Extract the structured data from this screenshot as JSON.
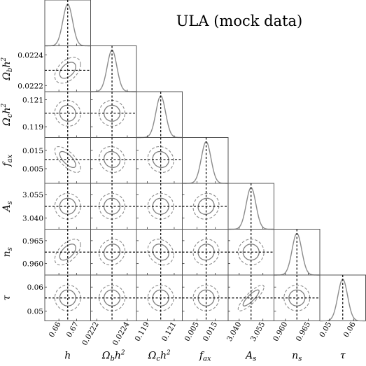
{
  "chart_data": {
    "type": "corner",
    "title": "ULA (mock data)",
    "parameters": [
      {
        "key": "h",
        "label_main": "h",
        "label_sub": "",
        "label_sup": "",
        "truth": 0.665,
        "range": [
          0.652,
          0.678
        ],
        "ticks": [
          "0.66",
          "0.67"
        ],
        "tick_values": [
          0.66,
          0.67
        ]
      },
      {
        "key": "omb",
        "label_main": "Ω",
        "label_sub": "b",
        "label_sup": "2",
        "label_tail": "h",
        "truth": 0.0223,
        "range": [
          0.02216,
          0.02246
        ],
        "ticks": [
          "0.0222",
          "0.0224"
        ],
        "tick_values": [
          0.0222,
          0.0224
        ]
      },
      {
        "key": "omc",
        "label_main": "Ω",
        "label_sub": "c",
        "label_sup": "2",
        "label_tail": "h",
        "truth": 0.12,
        "range": [
          0.1182,
          0.1216
        ],
        "ticks": [
          "0.119",
          "0.121"
        ],
        "tick_values": [
          0.119,
          0.121
        ]
      },
      {
        "key": "fax",
        "label_main": "f",
        "label_sub": "ax",
        "label_sup": "",
        "truth": 0.01,
        "range": [
          -0.003,
          0.022
        ],
        "ticks": [
          "0.005",
          "0.015"
        ],
        "tick_values": [
          0.005,
          0.015
        ]
      },
      {
        "key": "As",
        "label_main": "A",
        "label_sub": "s",
        "label_sup": "",
        "truth": 3.0475,
        "range": [
          3.033,
          3.062
        ],
        "ticks": [
          "3.040",
          "3.055"
        ],
        "tick_values": [
          3.04,
          3.055
        ]
      },
      {
        "key": "ns",
        "label_main": "n",
        "label_sub": "s",
        "label_sup": "",
        "truth": 0.9625,
        "range": [
          0.9575,
          0.9675
        ],
        "ticks": [
          "0.960",
          "0.965"
        ],
        "tick_values": [
          0.96,
          0.965
        ]
      },
      {
        "key": "tau",
        "label_main": "τ",
        "label_sub": "",
        "label_sup": "",
        "truth": 0.0555,
        "range": [
          0.046,
          0.065
        ],
        "ticks": [
          "0.05",
          "0.06"
        ],
        "tick_values": [
          0.05,
          0.06
        ]
      }
    ],
    "contours": [
      {
        "x": "h",
        "y": "omb",
        "rho": 0.45
      },
      {
        "x": "h",
        "y": "omc",
        "rho": -0.05
      },
      {
        "x": "omb",
        "y": "omc",
        "rho": 0.0
      },
      {
        "x": "h",
        "y": "fax",
        "rho": -0.7
      },
      {
        "x": "omb",
        "y": "fax",
        "rho": -0.1
      },
      {
        "x": "omc",
        "y": "fax",
        "rho": -0.1
      },
      {
        "x": "h",
        "y": "As",
        "rho": 0.0
      },
      {
        "x": "omb",
        "y": "As",
        "rho": 0.0
      },
      {
        "x": "omc",
        "y": "As",
        "rho": 0.0
      },
      {
        "x": "fax",
        "y": "As",
        "rho": 0.1
      },
      {
        "x": "h",
        "y": "ns",
        "rho": 0.55
      },
      {
        "x": "omb",
        "y": "ns",
        "rho": 0.1
      },
      {
        "x": "omc",
        "y": "ns",
        "rho": -0.2
      },
      {
        "x": "fax",
        "y": "ns",
        "rho": 0.05
      },
      {
        "x": "As",
        "y": "ns",
        "rho": 0.0
      },
      {
        "x": "h",
        "y": "tau",
        "rho": 0.0
      },
      {
        "x": "omb",
        "y": "tau",
        "rho": 0.0
      },
      {
        "x": "omc",
        "y": "tau",
        "rho": 0.0
      },
      {
        "x": "fax",
        "y": "tau",
        "rho": 0.0
      },
      {
        "x": "As",
        "y": "tau",
        "rho": 0.85
      },
      {
        "x": "ns",
        "y": "tau",
        "rho": 0.0
      }
    ],
    "contour_levels": [
      "68%",
      "95%"
    ],
    "colors": {
      "contour_inner": "#808080",
      "contour_outer": "#8c8c8c",
      "marginal": "#8c8c8c",
      "truth_line": "#000000",
      "frame": "#555555"
    }
  }
}
